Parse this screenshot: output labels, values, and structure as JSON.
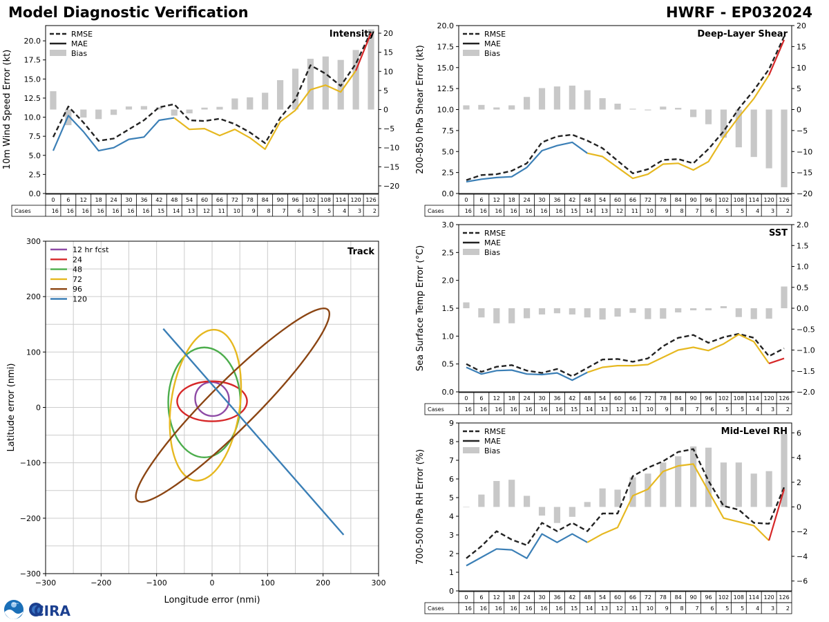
{
  "header": {
    "title_left": "Model Diagnostic Verification",
    "title_right": "HWRF - EP032024"
  },
  "logos": {
    "noaa": "NOAA",
    "cira": "CIRA"
  },
  "colors": {
    "rmse": "#222222",
    "early": "#3b7fb6",
    "mid": "#e6b820",
    "late": "#d62728",
    "bias": "#c8c8c8",
    "grid": "#cccccc"
  },
  "legend": {
    "rmse": "RMSE",
    "mae": "MAE",
    "bias": "Bias"
  },
  "cases_label": "Cases",
  "chart_data": [
    {
      "id": "intensity",
      "type": "line",
      "panel_title": "Intensity",
      "ylabel": "10m Wind Speed Error (kt)",
      "y2label": "",
      "ylim": [
        0,
        22
      ],
      "yticks": [
        0,
        2.5,
        5,
        7.5,
        10,
        12.5,
        15,
        17.5,
        20
      ],
      "yticklabels": [
        "0.0",
        "2.5",
        "5.0",
        "7.5",
        "10.0",
        "12.5",
        "15.0",
        "17.5",
        "20.0"
      ],
      "y2lim": [
        -22,
        22
      ],
      "y2ticks": [
        -20,
        -15,
        -10,
        -5,
        0,
        5,
        10,
        15,
        20
      ],
      "y2ticklabels": [
        "−20",
        "−15",
        "−10",
        "−5",
        "0",
        "5",
        "10",
        "15",
        "20"
      ],
      "x": [
        0,
        6,
        12,
        18,
        24,
        30,
        36,
        42,
        48,
        54,
        60,
        66,
        72,
        78,
        84,
        90,
        96,
        102,
        108,
        114,
        120,
        126
      ],
      "cases": [
        16,
        16,
        16,
        16,
        16,
        16,
        16,
        15,
        14,
        13,
        12,
        11,
        10,
        9,
        8,
        7,
        6,
        5,
        5,
        4,
        3,
        2
      ],
      "rmse": [
        7.4,
        11.4,
        9.3,
        6.9,
        7.2,
        8.4,
        9.6,
        11.3,
        11.7,
        9.6,
        9.5,
        9.8,
        9.1,
        8.0,
        6.6,
        9.9,
        12.3,
        16.8,
        15.7,
        14.1,
        17.0,
        21.2
      ],
      "mae": [
        5.6,
        10.2,
        8.1,
        5.6,
        6.0,
        7.1,
        7.4,
        9.6,
        9.9,
        8.4,
        8.5,
        7.6,
        8.4,
        7.3,
        5.8,
        9.4,
        10.9,
        13.6,
        14.2,
        13.3,
        16.1,
        21.0
      ],
      "bias": [
        4.8,
        -4.1,
        -2.1,
        -2.5,
        -1.4,
        0.8,
        0.9,
        0.6,
        -1.6,
        -1.0,
        0.5,
        0.7,
        2.9,
        3.2,
        4.4,
        7.7,
        10.7,
        13.3,
        13.9,
        13.0,
        15.6,
        21.0
      ]
    },
    {
      "id": "shear",
      "type": "line",
      "panel_title": "Deep-Layer Shear",
      "ylabel": "200-850 hPa Shear Error (kt)",
      "y2label": "",
      "ylim": [
        0,
        20
      ],
      "yticks": [
        0,
        2.5,
        5,
        7.5,
        10,
        12.5,
        15,
        17.5,
        20
      ],
      "yticklabels": [
        "0.0",
        "2.5",
        "5.0",
        "7.5",
        "10.0",
        "12.5",
        "15.0",
        "17.5",
        "20.0"
      ],
      "y2lim": [
        -20,
        20
      ],
      "y2ticks": [
        -20,
        -15,
        -10,
        -5,
        0,
        5,
        10,
        15,
        20
      ],
      "y2ticklabels": [
        "−20",
        "−15",
        "−10",
        "−5",
        "0",
        "5",
        "10",
        "15",
        "20"
      ],
      "x": [
        0,
        6,
        12,
        18,
        24,
        30,
        36,
        42,
        48,
        54,
        60,
        66,
        72,
        78,
        84,
        90,
        96,
        102,
        108,
        114,
        120,
        126
      ],
      "cases": [
        16,
        16,
        16,
        16,
        16,
        16,
        16,
        15,
        14,
        13,
        12,
        11,
        10,
        9,
        8,
        7,
        6,
        5,
        5,
        4,
        3,
        2
      ],
      "rmse": [
        1.6,
        2.2,
        2.3,
        2.7,
        3.6,
        6.1,
        6.8,
        7.0,
        6.3,
        5.4,
        3.9,
        2.4,
        2.9,
        4.0,
        4.1,
        3.6,
        5.3,
        7.4,
        10.1,
        12.3,
        14.8,
        18.7
      ],
      "mae": [
        1.4,
        1.7,
        1.9,
        2.0,
        3.1,
        5.1,
        5.7,
        6.1,
        4.8,
        4.4,
        3.1,
        1.8,
        2.3,
        3.5,
        3.6,
        2.8,
        3.8,
        6.7,
        9.1,
        11.3,
        14.1,
        18.3
      ],
      "bias": [
        1.0,
        1.1,
        0.5,
        1.0,
        3.0,
        5.1,
        5.5,
        5.7,
        4.6,
        2.7,
        1.4,
        0.2,
        -0.2,
        0.7,
        0.4,
        -1.8,
        -3.5,
        -6.7,
        -9.0,
        -11.3,
        -14.0,
        -18.5
      ]
    },
    {
      "id": "sst",
      "type": "line",
      "panel_title": "SST",
      "ylabel": "Sea Surface Temp Error (°C)",
      "y2label": "",
      "ylim": [
        0,
        3
      ],
      "yticks": [
        0,
        0.5,
        1,
        1.5,
        2,
        2.5,
        3
      ],
      "yticklabels": [
        "0.0",
        "0.5",
        "1.0",
        "1.5",
        "2.0",
        "2.5",
        "3.0"
      ],
      "y2lim": [
        -2,
        2
      ],
      "y2ticks": [
        -2,
        -1.5,
        -1,
        -0.5,
        0,
        0.5,
        1,
        1.5,
        2
      ],
      "y2ticklabels": [
        "−2.0",
        "−1.5",
        "−1.0",
        "−0.5",
        "0.0",
        "0.5",
        "1.0",
        "1.5",
        "2.0"
      ],
      "x": [
        0,
        6,
        12,
        18,
        24,
        30,
        36,
        42,
        48,
        54,
        60,
        66,
        72,
        78,
        84,
        90,
        96,
        102,
        108,
        114,
        120,
        126
      ],
      "cases": [
        16,
        16,
        16,
        16,
        16,
        16,
        16,
        15,
        14,
        13,
        12,
        11,
        10,
        9,
        8,
        7,
        6,
        5,
        5,
        4,
        3,
        2
      ],
      "rmse": [
        0.5,
        0.36,
        0.45,
        0.48,
        0.38,
        0.34,
        0.41,
        0.28,
        0.43,
        0.58,
        0.59,
        0.54,
        0.6,
        0.82,
        0.97,
        1.02,
        0.88,
        0.98,
        1.04,
        0.97,
        0.64,
        0.78
      ],
      "mae": [
        0.44,
        0.32,
        0.38,
        0.39,
        0.32,
        0.31,
        0.34,
        0.21,
        0.35,
        0.44,
        0.47,
        0.47,
        0.49,
        0.62,
        0.75,
        0.8,
        0.74,
        0.86,
        1.03,
        0.9,
        0.51,
        0.6
      ],
      "bias": [
        0.14,
        -0.22,
        -0.36,
        -0.36,
        -0.24,
        -0.15,
        -0.12,
        -0.15,
        -0.22,
        -0.27,
        -0.2,
        -0.11,
        -0.26,
        -0.25,
        -0.1,
        -0.05,
        -0.05,
        0.05,
        -0.21,
        -0.26,
        -0.25,
        0.52
      ]
    },
    {
      "id": "rh",
      "type": "line",
      "panel_title": "Mid-Level RH",
      "ylabel": "700-500 hPa RH Error (%)",
      "y2label": "",
      "ylim": [
        0,
        9
      ],
      "yticks": [
        0,
        1,
        2,
        3,
        4,
        5,
        6,
        7,
        8,
        9
      ],
      "yticklabels": [
        "0",
        "1",
        "2",
        "3",
        "4",
        "5",
        "6",
        "7",
        "8",
        "9"
      ],
      "y2lim": [
        -6.8,
        6.8
      ],
      "y2ticks": [
        -6,
        -4,
        -2,
        0,
        2,
        4,
        6
      ],
      "y2ticklabels": [
        "−6",
        "−4",
        "−2",
        "0",
        "2",
        "4",
        "6"
      ],
      "x": [
        0,
        6,
        12,
        18,
        24,
        30,
        36,
        42,
        48,
        54,
        60,
        66,
        72,
        78,
        84,
        90,
        96,
        102,
        108,
        114,
        120,
        126
      ],
      "cases": [
        16,
        16,
        16,
        16,
        16,
        16,
        16,
        15,
        14,
        13,
        12,
        11,
        10,
        9,
        8,
        7,
        6,
        5,
        5,
        4,
        3,
        2
      ],
      "rmse": [
        1.75,
        2.4,
        3.2,
        2.75,
        2.45,
        3.65,
        3.2,
        3.65,
        3.2,
        4.15,
        4.15,
        6.15,
        6.6,
        6.95,
        7.45,
        7.6,
        5.9,
        4.55,
        4.35,
        3.65,
        3.6,
        5.55
      ],
      "mae": [
        1.35,
        1.8,
        2.25,
        2.2,
        1.75,
        3.05,
        2.6,
        3.05,
        2.6,
        3.05,
        3.4,
        5.1,
        5.45,
        6.4,
        6.7,
        6.8,
        5.35,
        3.9,
        3.7,
        3.5,
        2.7,
        5.45
      ],
      "bias": [
        0.0,
        1.0,
        2.1,
        2.2,
        0.9,
        -0.7,
        -1.3,
        -0.8,
        0.4,
        1.5,
        1.4,
        2.4,
        2.7,
        3.6,
        4.1,
        4.9,
        4.8,
        3.6,
        3.6,
        2.7,
        2.9,
        5.9
      ]
    },
    {
      "id": "track",
      "type": "line",
      "panel_title": "Track",
      "xlabel": "Longitude error (nmi)",
      "ylabel": "Latitude error (nmi)",
      "xlim": [
        -300,
        300
      ],
      "ylim": [
        -300,
        300
      ],
      "ticks": [
        -300,
        -200,
        -100,
        0,
        100,
        200,
        300
      ],
      "ticklabels": [
        "−300",
        "−200",
        "−100",
        "0",
        "100",
        "200",
        "300"
      ],
      "series": [
        {
          "name": "12 hr fcst",
          "color": "#8e4ba6",
          "cx": 0,
          "cy": 15,
          "rx": 30,
          "ry": 31,
          "angle": -45
        },
        {
          "name": "24",
          "color": "#d62728",
          "cx": 0,
          "cy": 11,
          "rx": 63,
          "ry": 36,
          "angle": 0
        },
        {
          "name": "48",
          "color": "#4cad4c",
          "cx": -14,
          "cy": 9,
          "rx": 65,
          "ry": 99,
          "angle": 0
        },
        {
          "name": "72",
          "color": "#e6b820",
          "cx": -12,
          "cy": 4,
          "rx": 62,
          "ry": 137,
          "angle": 8
        },
        {
          "name": "96",
          "color": "#8b4513",
          "cx": 37,
          "cy": 4,
          "rx": 243,
          "ry": 42,
          "angle": -45
        },
        {
          "name": "120",
          "color": "#3b7fb6",
          "line": [
            [
              -88,
              142
            ],
            [
              237,
              -230
            ]
          ]
        }
      ]
    }
  ]
}
